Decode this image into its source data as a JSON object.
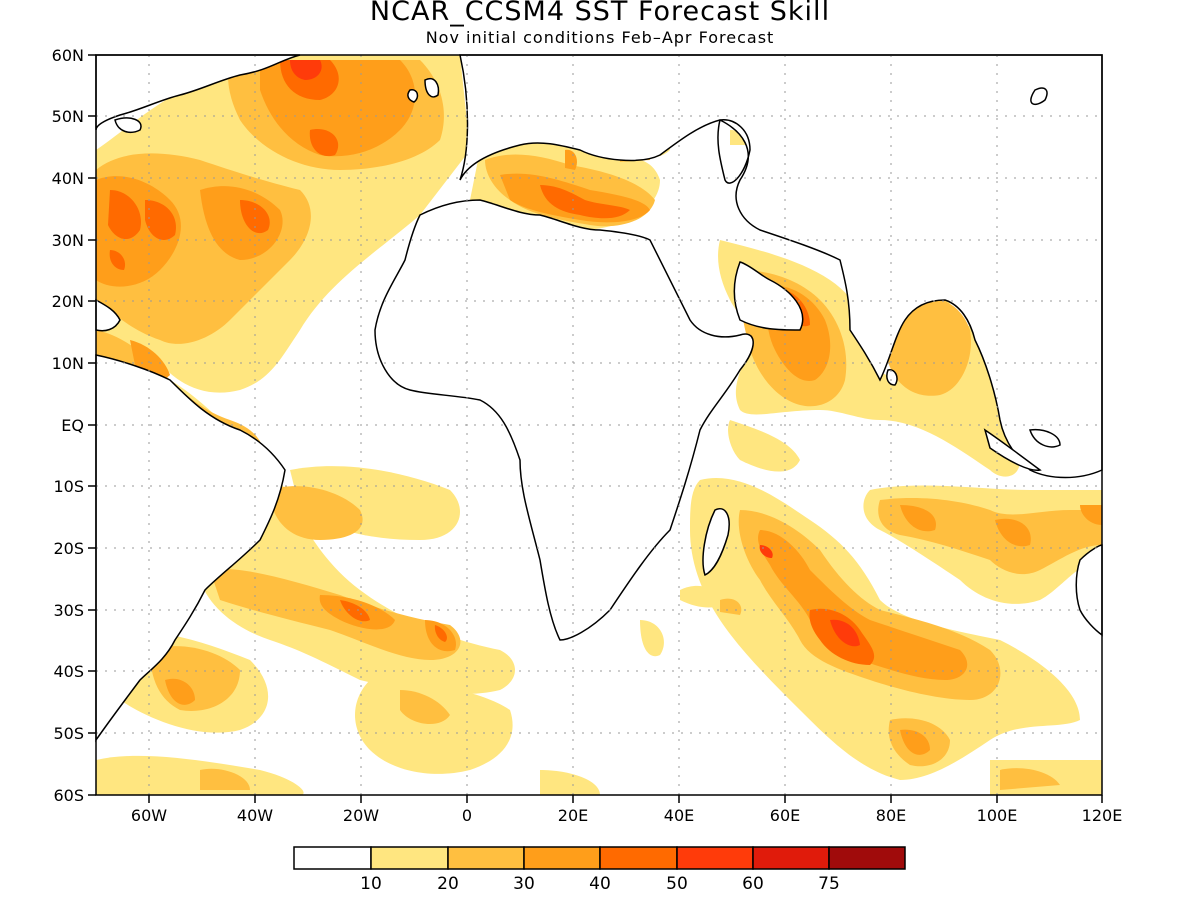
{
  "title": "NCAR_CCSM4 SST Forecast Skill",
  "subtitle": "Nov initial conditions  Feb–Apr Forecast",
  "map": {
    "lat_labels": [
      "60N",
      "50N",
      "40N",
      "30N",
      "20N",
      "10N",
      "EQ",
      "10S",
      "20S",
      "30S",
      "40S",
      "50S",
      "60S"
    ],
    "lon_labels": [
      "60W",
      "40W",
      "20W",
      "0",
      "20E",
      "40E",
      "60E",
      "80E",
      "100E",
      "120E"
    ],
    "lon_range": [
      -70,
      120
    ],
    "lat_range": [
      -60,
      60
    ],
    "grid": true
  },
  "colorbar": {
    "levels": [
      "10",
      "20",
      "30",
      "40",
      "50",
      "60",
      "75"
    ],
    "colors": [
      "#ffffff",
      "#ffe680",
      "#ffbf40",
      "#ff9e1a",
      "#ff6a00",
      "#ff3b0a",
      "#e01b0b",
      "#a00b0b"
    ]
  }
}
